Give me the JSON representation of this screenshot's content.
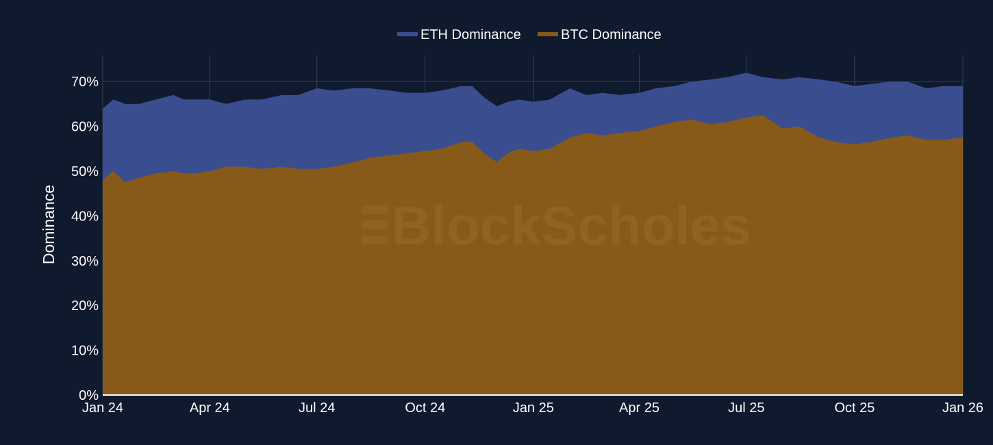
{
  "chart_data": {
    "type": "area",
    "stacked": false,
    "ylabel": "Dominance",
    "ylim": [
      0,
      0.76
    ],
    "y_ticks": [
      0,
      0.1,
      0.2,
      0.3,
      0.4,
      0.5,
      0.6,
      0.7
    ],
    "y_tick_labels": [
      "0%",
      "10%",
      "20%",
      "30%",
      "40%",
      "50%",
      "60%",
      "70%"
    ],
    "xlim": [
      "2024-01-01",
      "2026-01-01"
    ],
    "x_ticks": [
      "2024-01-01",
      "2024-04-01",
      "2024-07-01",
      "2024-10-01",
      "2025-01-01",
      "2025-04-01",
      "2025-07-01",
      "2025-10-01",
      "2026-01-01"
    ],
    "x_tick_labels": [
      "Jan 24",
      "Apr 24",
      "Jul 24",
      "Oct 24",
      "Jan 25",
      "Apr 25",
      "Jul 25",
      "Oct 25",
      "Jan 26"
    ],
    "grid": true,
    "legend_position": "top-center",
    "watermark": "BlockScholes",
    "series": [
      {
        "name": "ETH Dominance",
        "color": "#3a4d8f",
        "x": [
          "2024-01-01",
          "2024-01-10",
          "2024-01-20",
          "2024-02-01",
          "2024-02-15",
          "2024-03-01",
          "2024-03-10",
          "2024-03-20",
          "2024-04-01",
          "2024-04-15",
          "2024-05-01",
          "2024-05-15",
          "2024-06-01",
          "2024-06-15",
          "2024-07-01",
          "2024-07-15",
          "2024-08-01",
          "2024-08-15",
          "2024-09-01",
          "2024-09-15",
          "2024-10-01",
          "2024-10-15",
          "2024-11-01",
          "2024-11-10",
          "2024-11-20",
          "2024-12-01",
          "2024-12-10",
          "2024-12-20",
          "2025-01-01",
          "2025-01-15",
          "2025-02-01",
          "2025-02-15",
          "2025-03-01",
          "2025-03-15",
          "2025-04-01",
          "2025-04-15",
          "2025-05-01",
          "2025-05-15",
          "2025-06-01",
          "2025-06-15",
          "2025-07-01",
          "2025-07-15",
          "2025-08-01",
          "2025-08-15",
          "2025-09-01",
          "2025-09-15",
          "2025-10-01",
          "2025-10-15",
          "2025-11-01",
          "2025-11-15",
          "2025-12-01",
          "2025-12-15",
          "2026-01-01"
        ],
        "values": [
          0.64,
          0.66,
          0.65,
          0.65,
          0.66,
          0.67,
          0.66,
          0.66,
          0.66,
          0.65,
          0.66,
          0.66,
          0.67,
          0.67,
          0.685,
          0.68,
          0.685,
          0.685,
          0.68,
          0.675,
          0.675,
          0.68,
          0.69,
          0.69,
          0.665,
          0.645,
          0.655,
          0.66,
          0.655,
          0.66,
          0.685,
          0.67,
          0.675,
          0.67,
          0.675,
          0.685,
          0.69,
          0.7,
          0.705,
          0.71,
          0.72,
          0.71,
          0.705,
          0.71,
          0.705,
          0.7,
          0.69,
          0.695,
          0.7,
          0.7,
          0.685,
          0.69,
          0.69
        ]
      },
      {
        "name": "BTC Dominance",
        "color": "#875a1a",
        "x": [
          "2024-01-01",
          "2024-01-10",
          "2024-01-20",
          "2024-02-01",
          "2024-02-15",
          "2024-03-01",
          "2024-03-10",
          "2024-03-20",
          "2024-04-01",
          "2024-04-15",
          "2024-05-01",
          "2024-05-15",
          "2024-06-01",
          "2024-06-15",
          "2024-07-01",
          "2024-07-15",
          "2024-08-01",
          "2024-08-15",
          "2024-09-01",
          "2024-09-15",
          "2024-10-01",
          "2024-10-15",
          "2024-11-01",
          "2024-11-10",
          "2024-11-20",
          "2024-12-01",
          "2024-12-10",
          "2024-12-20",
          "2025-01-01",
          "2025-01-15",
          "2025-02-01",
          "2025-02-15",
          "2025-03-01",
          "2025-03-15",
          "2025-04-01",
          "2025-04-15",
          "2025-05-01",
          "2025-05-15",
          "2025-06-01",
          "2025-06-15",
          "2025-07-01",
          "2025-07-15",
          "2025-08-01",
          "2025-08-15",
          "2025-09-01",
          "2025-09-15",
          "2025-10-01",
          "2025-10-15",
          "2025-11-01",
          "2025-11-15",
          "2025-12-01",
          "2025-12-15",
          "2026-01-01"
        ],
        "values": [
          0.48,
          0.5,
          0.475,
          0.485,
          0.495,
          0.5,
          0.495,
          0.495,
          0.5,
          0.51,
          0.51,
          0.505,
          0.51,
          0.505,
          0.505,
          0.51,
          0.52,
          0.53,
          0.535,
          0.54,
          0.545,
          0.55,
          0.565,
          0.565,
          0.54,
          0.52,
          0.54,
          0.55,
          0.545,
          0.55,
          0.575,
          0.585,
          0.58,
          0.585,
          0.59,
          0.6,
          0.61,
          0.615,
          0.605,
          0.61,
          0.62,
          0.625,
          0.595,
          0.6,
          0.575,
          0.565,
          0.56,
          0.565,
          0.575,
          0.58,
          0.57,
          0.57,
          0.575
        ]
      }
    ]
  }
}
